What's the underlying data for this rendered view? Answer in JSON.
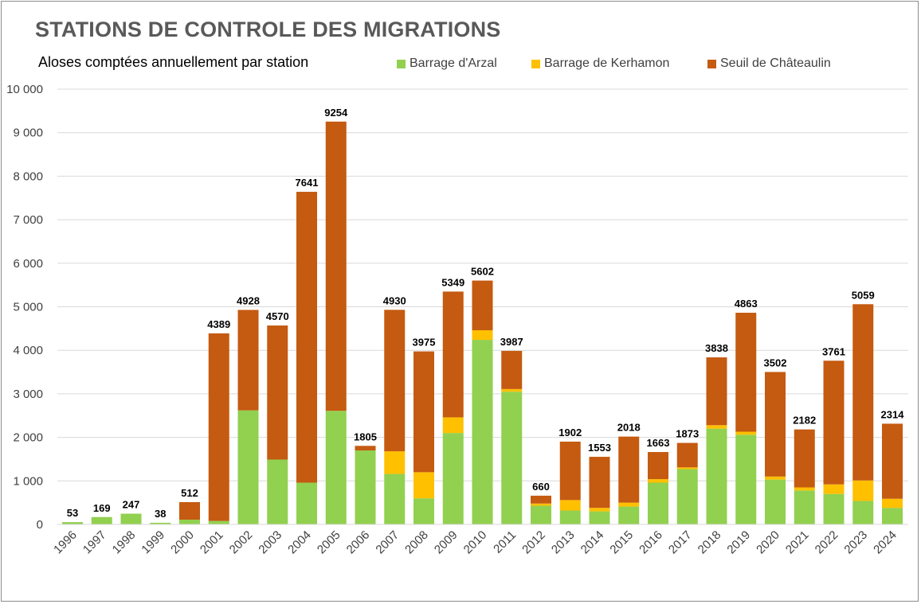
{
  "chart_data": {
    "type": "bar",
    "stacked": true,
    "title": "STATIONS DE CONTROLE DES MIGRATIONS",
    "subtitle": "Aloses comptées annuellement par station",
    "xlabel": "",
    "ylabel": "",
    "ylim": [
      0,
      10000
    ],
    "yticks": [
      0,
      1000,
      2000,
      3000,
      4000,
      5000,
      6000,
      7000,
      8000,
      9000,
      10000
    ],
    "ytick_labels": [
      "0",
      "1 000",
      "2 000",
      "3 000",
      "4 000",
      "5 000",
      "6 000",
      "7 000",
      "8 000",
      "9 000",
      "10 000"
    ],
    "grid": true,
    "legend_position": "top",
    "categories": [
      "1996",
      "1997",
      "1998",
      "1999",
      "2000",
      "2001",
      "2002",
      "2003",
      "2004",
      "2005",
      "2006",
      "2007",
      "2008",
      "2009",
      "2010",
      "2011",
      "2012",
      "2013",
      "2014",
      "2015",
      "2016",
      "2017",
      "2018",
      "2019",
      "2020",
      "2021",
      "2022",
      "2023",
      "2024"
    ],
    "series": [
      {
        "name": "Barrage d'Arzal",
        "color": "#92d050",
        "values": [
          53,
          169,
          247,
          38,
          110,
          80,
          2620,
          1490,
          960,
          2610,
          1700,
          1160,
          600,
          2100,
          4240,
          3050,
          430,
          320,
          300,
          410,
          960,
          1270,
          2200,
          2060,
          1030,
          780,
          700,
          540,
          380
        ]
      },
      {
        "name": "Barrage de Kerhamon",
        "color": "#ffc000",
        "values": [
          0,
          0,
          0,
          0,
          0,
          0,
          0,
          0,
          0,
          0,
          0,
          520,
          600,
          360,
          220,
          60,
          50,
          240,
          80,
          90,
          80,
          40,
          80,
          70,
          70,
          70,
          220,
          470,
          210
        ]
      },
      {
        "name": "Seuil de Châteaulin",
        "color": "#c55a11",
        "values": [
          0,
          0,
          0,
          0,
          402,
          4309,
          2308,
          3080,
          6681,
          6644,
          105,
          3250,
          2775,
          2889,
          1142,
          877,
          180,
          1342,
          1173,
          1518,
          623,
          563,
          1558,
          2733,
          2402,
          1332,
          2841,
          4049,
          1724
        ]
      }
    ],
    "totals": [
      53,
      169,
      247,
      38,
      512,
      4389,
      4928,
      4570,
      7641,
      9254,
      1805,
      4930,
      3975,
      5349,
      5602,
      3987,
      660,
      1902,
      1553,
      2018,
      1663,
      1873,
      3838,
      4863,
      3502,
      2182,
      3761,
      5059,
      2314
    ]
  }
}
